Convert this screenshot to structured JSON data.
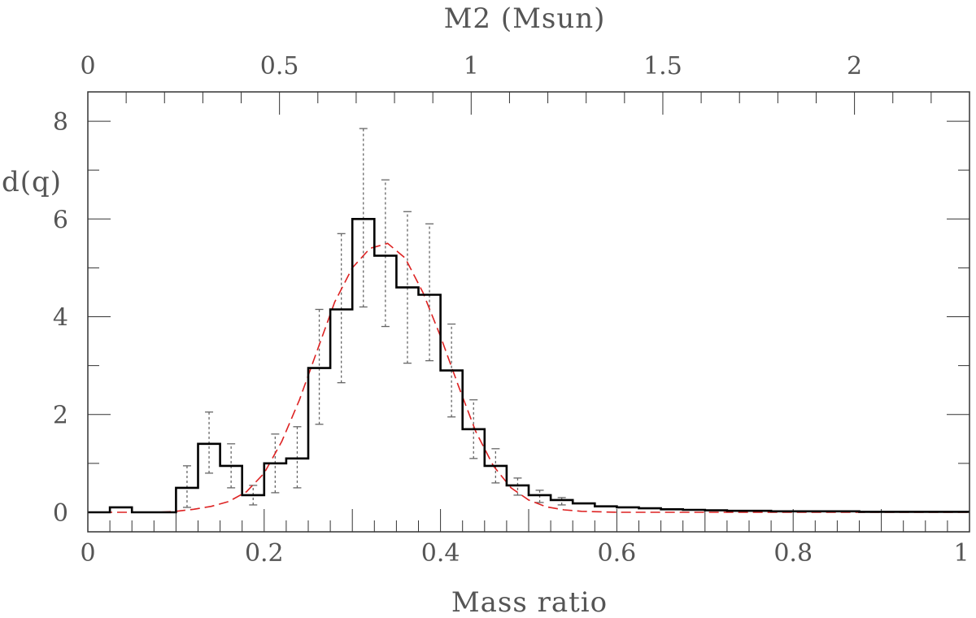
{
  "chart_data": {
    "type": "histogram",
    "xlabel": "Mass ratio",
    "ylabel": "d(q)",
    "top_xlabel": "M2 (Msun)",
    "xlim": [
      0,
      1
    ],
    "ylim": [
      -0.4,
      8.6
    ],
    "top_xlim": [
      0,
      2.3
    ],
    "x_ticks": [
      0,
      0.2,
      0.4,
      0.6,
      0.8,
      1
    ],
    "x_tick_labels": [
      "0",
      "0.2",
      "0.4",
      "0.6",
      "0.8",
      "1"
    ],
    "y_ticks": [
      0,
      2,
      4,
      6,
      8
    ],
    "y_tick_labels": [
      "0",
      "2",
      "4",
      "6",
      "8"
    ],
    "top_ticks": [
      0,
      0.5,
      1,
      1.5,
      2
    ],
    "top_tick_labels": [
      "0",
      "0.5",
      "1",
      "1.5",
      "2"
    ],
    "bin_width": 0.025,
    "bin_edges_start": 0,
    "values": [
      0,
      0.1,
      0,
      0,
      0.5,
      1.4,
      0.95,
      0.35,
      1.0,
      1.1,
      2.95,
      4.15,
      6.0,
      5.25,
      4.6,
      4.45,
      2.9,
      1.7,
      0.95,
      0.55,
      0.35,
      0.25,
      0.18,
      0.12,
      0.1,
      0.08,
      0.06,
      0.05,
      0.04,
      0.03,
      0.03,
      0.02,
      0.02,
      0.02,
      0.02,
      0.01,
      0.01,
      0.01,
      0.01,
      0.01
    ],
    "error_bars": [
      {
        "x": 0.1125,
        "low": 0.1,
        "high": 0.95
      },
      {
        "x": 0.1375,
        "low": 0.8,
        "high": 2.05
      },
      {
        "x": 0.1625,
        "low": 0.5,
        "high": 1.4
      },
      {
        "x": 0.1875,
        "low": 0.15,
        "high": 0.55
      },
      {
        "x": 0.2125,
        "low": 0.4,
        "high": 1.6
      },
      {
        "x": 0.2375,
        "low": 0.5,
        "high": 1.75
      },
      {
        "x": 0.2625,
        "low": 1.8,
        "high": 4.15
      },
      {
        "x": 0.2875,
        "low": 2.65,
        "high": 5.7
      },
      {
        "x": 0.3125,
        "low": 4.2,
        "high": 7.85
      },
      {
        "x": 0.3375,
        "low": 3.8,
        "high": 6.8
      },
      {
        "x": 0.3625,
        "low": 3.05,
        "high": 6.15
      },
      {
        "x": 0.3875,
        "low": 3.1,
        "high": 5.9
      },
      {
        "x": 0.4125,
        "low": 1.95,
        "high": 3.85
      },
      {
        "x": 0.4375,
        "low": 1.1,
        "high": 2.3
      },
      {
        "x": 0.4625,
        "low": 0.6,
        "high": 1.3
      },
      {
        "x": 0.4875,
        "low": 0.35,
        "high": 0.7
      },
      {
        "x": 0.5125,
        "low": 0.2,
        "high": 0.45
      },
      {
        "x": 0.5375,
        "low": 0.15,
        "high": 0.3
      }
    ],
    "fit": {
      "style": "dashed",
      "color": "#dd2222",
      "points": [
        [
          0.0,
          0.0
        ],
        [
          0.06,
          0.0
        ],
        [
          0.08,
          0.0
        ],
        [
          0.1,
          0.02
        ],
        [
          0.12,
          0.06
        ],
        [
          0.14,
          0.12
        ],
        [
          0.16,
          0.22
        ],
        [
          0.18,
          0.42
        ],
        [
          0.2,
          0.8
        ],
        [
          0.22,
          1.45
        ],
        [
          0.24,
          2.3
        ],
        [
          0.26,
          3.3
        ],
        [
          0.28,
          4.3
        ],
        [
          0.3,
          5.0
        ],
        [
          0.32,
          5.4
        ],
        [
          0.34,
          5.5
        ],
        [
          0.36,
          5.2
        ],
        [
          0.38,
          4.5
        ],
        [
          0.4,
          3.6
        ],
        [
          0.42,
          2.6
        ],
        [
          0.44,
          1.65
        ],
        [
          0.46,
          0.95
        ],
        [
          0.48,
          0.5
        ],
        [
          0.5,
          0.25
        ],
        [
          0.52,
          0.11
        ],
        [
          0.54,
          0.05
        ],
        [
          0.56,
          0.02
        ],
        [
          0.6,
          0.0
        ],
        [
          1.0,
          0.0
        ]
      ]
    },
    "histogram_color": "#000000",
    "errorbar_color": "#666666"
  }
}
